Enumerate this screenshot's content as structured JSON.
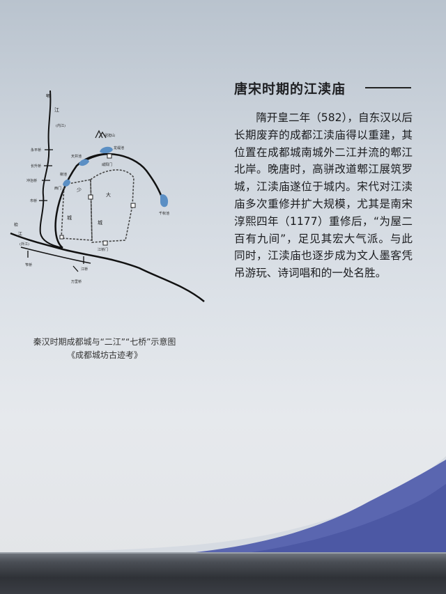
{
  "panel": {
    "title": "唐宋时期的江渎庙",
    "paragraph": "隋开皇二年（582），自东汉以后长期废弃的成都江渎庙得以重建，其位置在成都城南城外二江并流的郫江北岸。晚唐时，高骈改道郫江展筑罗城，江渎庙遂位于城内。宋代对江渎庙多次重修并扩大规模，尤其是南宋淳熙四年（1177）重修后，“为屋二百有九间”，足见其宏大气派。与此同时，江渎庙也逐步成为文人墨客凭吊游玩、诗词唱和的一处名胜。"
  },
  "map": {
    "labels": {
      "pi": "郫",
      "jiang": "江",
      "neijiang": "(内江)",
      "wudan": "武担山",
      "longbaichi": "龙堤池",
      "tianfuchi": "天井池",
      "liuchi": "柳池",
      "chengbei": "咸阳门",
      "xiaocheng_shao": "少",
      "xiaocheng_cheng": "城",
      "dacheng_da": "大",
      "dacheng_cheng": "城",
      "ximen": "西门",
      "qianqiuchi": "千秋池",
      "yongpingqiao": "永平桥",
      "changshengqiao": "长升桥",
      "chongliqiao": "冲治桥",
      "shiqiao": "市桥",
      "jian": "检",
      "jiang2": "江",
      "waijiang": "(外江)",
      "zuoqiao": "笮桥",
      "jiangqiao": "江桥",
      "jiangqiaomen": "江桥门",
      "wanliqiao": "万里桥"
    },
    "caption_line1": "秦汉时期成都城与“二江”“七桥”示意图",
    "caption_line2": "《成都城坊古迹考》"
  },
  "colors": {
    "water": "#5b8fc4",
    "accent_wave": "#4a5fa8"
  }
}
